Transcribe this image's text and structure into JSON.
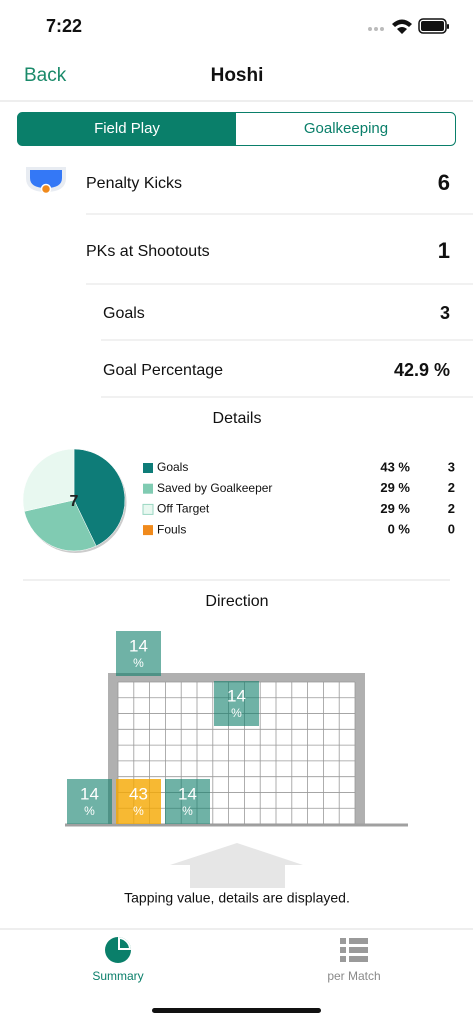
{
  "status": {
    "time": "7:22"
  },
  "nav": {
    "back": "Back",
    "title": "Hoshi"
  },
  "tabs": [
    "Field Play",
    "Goalkeeping"
  ],
  "stats": [
    {
      "label": "Penalty Kicks",
      "value": 6
    },
    {
      "label": "PKs at Shootouts",
      "value": 1
    },
    {
      "label": "Goals",
      "value": 3
    },
    {
      "label": "Goal Percentage",
      "value": "42.9 %"
    }
  ],
  "details": {
    "title": "Details",
    "total": 7,
    "rows": [
      {
        "label": "Goals",
        "percent": "43 %",
        "count": 3,
        "color": "#0e7c78"
      },
      {
        "label": "Saved by Goalkeeper",
        "percent": "29 %",
        "count": 2,
        "color": "#80cbb2"
      },
      {
        "label": "Off Target",
        "percent": "29 %",
        "count": 2,
        "color": "#e8f8f0"
      },
      {
        "label": "Fouls",
        "percent": "0 %",
        "count": 0,
        "color": "#f08a1c"
      }
    ]
  },
  "direction": {
    "title": "Direction",
    "zones": [
      {
        "value": "14",
        "unit": "%",
        "color": "#0f7f6a"
      },
      {
        "value": "14",
        "unit": "%",
        "color": "#0f7f6a"
      },
      {
        "value": "14",
        "unit": "%",
        "color": "#0f7f6a"
      },
      {
        "value": "43",
        "unit": "%",
        "color": "#f5a800"
      },
      {
        "value": "14",
        "unit": "%",
        "color": "#0f7f6a"
      }
    ]
  },
  "hint": "Tapping value, details are displayed.",
  "tab_bar": [
    "Summary",
    "per Match"
  ]
}
